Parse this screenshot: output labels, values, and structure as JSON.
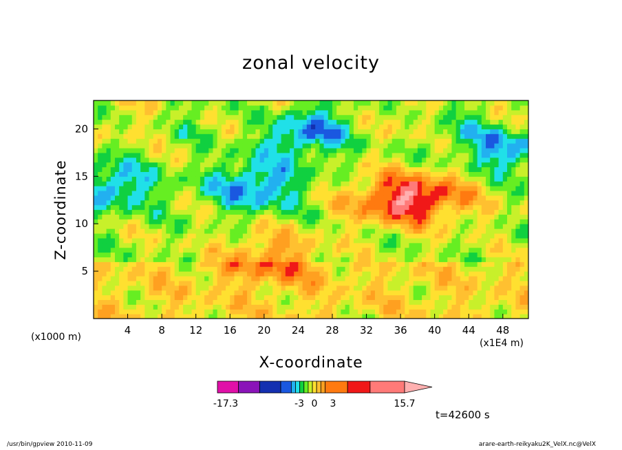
{
  "chart_data": {
    "type": "heatmap",
    "title": "zonal velocity",
    "xlabel": "X-coordinate",
    "ylabel": "Z-coordinate",
    "x_unit": "(x1E4 m)",
    "y_unit": "(x1000 m)",
    "xlim": [
      0,
      51
    ],
    "ylim": [
      0,
      23
    ],
    "x_ticks": [
      4,
      8,
      12,
      16,
      20,
      24,
      28,
      32,
      36,
      40,
      44,
      48
    ],
    "y_ticks": [
      5,
      10,
      15,
      20
    ],
    "colorbar": {
      "labels": [
        "-17.3",
        "-3",
        "0",
        "3",
        "15.7"
      ],
      "min": -17.3,
      "max": 15.7,
      "colors": [
        "#e010a8",
        "#8a14b8",
        "#1430b0",
        "#1a58e0",
        "#22b0f0",
        "#20e0e8",
        "#10d040",
        "#66ee22",
        "#c8f02a",
        "#ffe030",
        "#ffc030",
        "#ffa020",
        "#ff7a10",
        "#f01818",
        "#ff7a78",
        "#ffb0b0"
      ]
    },
    "features": [
      {
        "x": 2,
        "z": 14,
        "value": -8
      },
      {
        "x": 19,
        "z": 14,
        "value": -9
      },
      {
        "x": 35,
        "z": 12.5,
        "value": 9
      },
      {
        "x": 21,
        "z": 6.5,
        "value": 7
      },
      {
        "x": 48,
        "z": 18,
        "value": -8
      },
      {
        "x": 40,
        "z": 13,
        "value": 7
      },
      {
        "x": 24.5,
        "z": 19.5,
        "value": -8
      }
    ],
    "time_label": "t=42600 s"
  },
  "footer": {
    "left": "/usr/bin/gpview   2010-11-09",
    "right": "arare-earth-reikyaku2K_VelX.nc@VelX"
  }
}
